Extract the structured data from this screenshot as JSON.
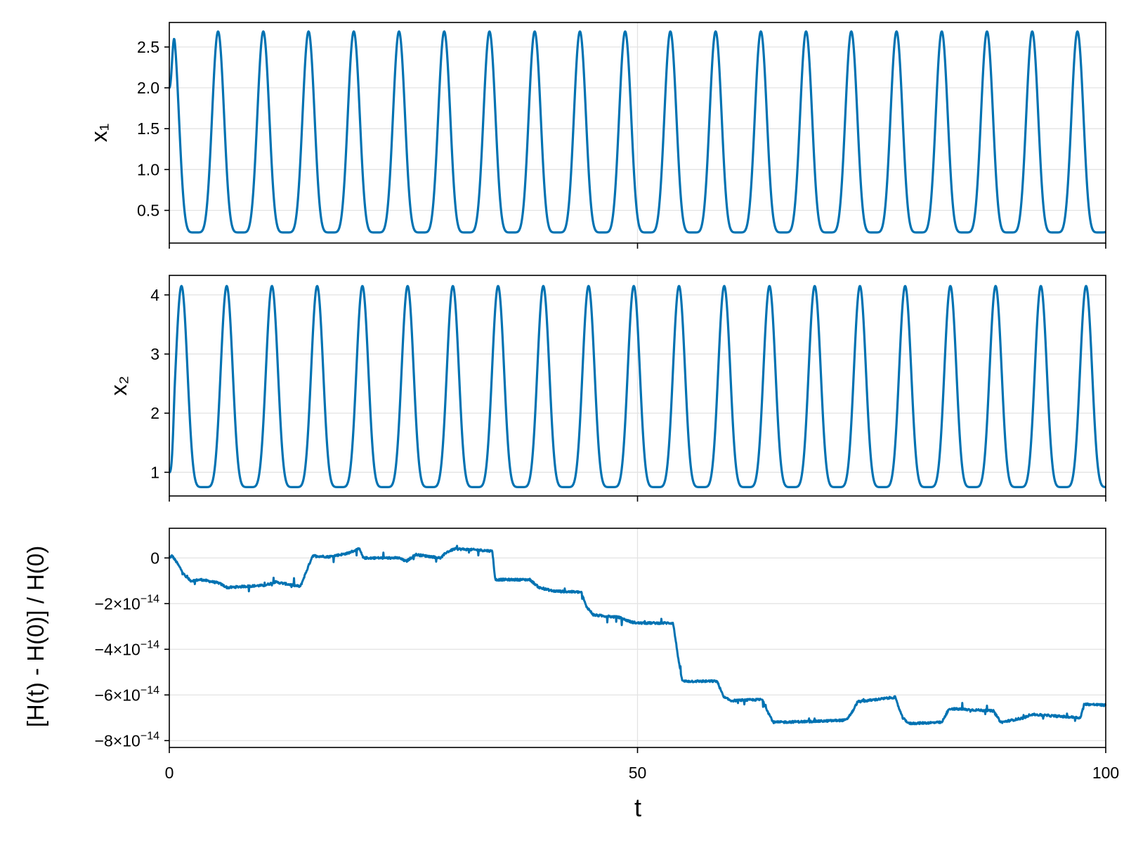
{
  "colors": {
    "series": "#0072b2",
    "grid": "#e3e3e3",
    "frame": "#000000",
    "background": "#ffffff"
  },
  "x_axis": {
    "label": "t",
    "ticks": [
      "0",
      "50",
      "100"
    ]
  },
  "chart_data": [
    {
      "type": "line",
      "title": "",
      "xlabel": "",
      "ylabel": "x₁",
      "xlim": [
        0,
        100
      ],
      "ylim": [
        0.1,
        2.8
      ],
      "yticks": [
        0.5,
        1.0,
        1.5,
        2.0,
        2.5
      ],
      "ytick_labels": [
        "0.5",
        "1.0",
        "1.5",
        "2.0",
        "2.5"
      ],
      "grid": true,
      "series_shape": {
        "kind": "periodic",
        "period": 4.83,
        "phase_offset": 0.38,
        "min": 0.23,
        "max": 2.69,
        "initial_value": 2.0
      },
      "series": [
        {
          "name": "",
          "x": [
            0,
            0.4,
            0.8,
            1.3,
            2.0,
            2.8,
            3.7,
            4.2,
            4.6,
            4.9,
            5.2,
            5.6,
            6.1
          ],
          "y": [
            2.0,
            2.69,
            1.85,
            0.7,
            0.3,
            0.24,
            0.35,
            0.9,
            2.0,
            2.69,
            2.0,
            0.75,
            0.3
          ]
        }
      ]
    },
    {
      "type": "line",
      "title": "",
      "xlabel": "",
      "ylabel": "x₂",
      "xlim": [
        0,
        100
      ],
      "ylim": [
        0.6,
        4.33
      ],
      "yticks": [
        1,
        2,
        3,
        4
      ],
      "ytick_labels": [
        "1",
        "2",
        "3",
        "4"
      ],
      "grid": true,
      "series_shape": {
        "kind": "periodic",
        "period": 4.83,
        "phase_offset": 1.3,
        "min": 0.75,
        "max": 4.15,
        "initial_value": 1.0
      },
      "series": [
        {
          "name": "",
          "x": [
            0,
            0.5,
            1.0,
            1.3,
            1.8,
            2.5,
            3.2,
            4.0,
            4.7,
            5.4,
            6.1
          ],
          "y": [
            1.0,
            2.2,
            3.8,
            4.15,
            3.5,
            1.9,
            1.05,
            0.78,
            0.9,
            1.6,
            3.2
          ]
        }
      ]
    },
    {
      "type": "line",
      "title": "",
      "xlabel": "t",
      "ylabel": "[H(t) - H(0)] / H(0)",
      "xlim": [
        0,
        100
      ],
      "ylim": [
        -8.3e-14,
        1.3e-14
      ],
      "xticks": [
        0,
        50,
        100
      ],
      "yticks": [
        0,
        -2e-14,
        -4e-14,
        -6e-14,
        -8e-14
      ],
      "ytick_labels": [
        {
          "mantissa": "0",
          "exponent": ""
        },
        {
          "mantissa": "−2×10",
          "exponent": "−14"
        },
        {
          "mantissa": "−4×10",
          "exponent": "−14"
        },
        {
          "mantissa": "−6×10",
          "exponent": "−14"
        },
        {
          "mantissa": "−8×10",
          "exponent": "−14"
        }
      ],
      "grid": true,
      "series": [
        {
          "name": "",
          "step_levels_1e14": [
            [
              0,
              0
            ],
            [
              0.3,
              0.1
            ],
            [
              0.8,
              -0.2
            ],
            [
              1.7,
              -0.8
            ],
            [
              2.3,
              -1.0
            ],
            [
              3.4,
              -0.95
            ],
            [
              5.3,
              -1.1
            ],
            [
              6.2,
              -1.3
            ],
            [
              7.8,
              -1.25
            ],
            [
              10.2,
              -1.2
            ],
            [
              11.3,
              -1.05
            ],
            [
              14.0,
              -1.25
            ],
            [
              15.3,
              0.1
            ],
            [
              17.0,
              0.05
            ],
            [
              19.0,
              0.2
            ],
            [
              20.3,
              0.4
            ],
            [
              20.7,
              0.0
            ],
            [
              24.5,
              0.0
            ],
            [
              25.3,
              -0.15
            ],
            [
              26.3,
              0.15
            ],
            [
              29.0,
              0.0
            ],
            [
              29.6,
              0.25
            ],
            [
              30.5,
              0.4
            ],
            [
              33.0,
              0.35
            ],
            [
              34.5,
              0.3
            ],
            [
              34.8,
              -0.95
            ],
            [
              38.5,
              -0.95
            ],
            [
              39.5,
              -1.3
            ],
            [
              41.0,
              -1.45
            ],
            [
              44.0,
              -1.5
            ],
            [
              44.5,
              -2.1
            ],
            [
              45.3,
              -2.5
            ],
            [
              48.0,
              -2.6
            ],
            [
              49.3,
              -2.8
            ],
            [
              50.0,
              -2.85
            ],
            [
              53.8,
              -2.85
            ],
            [
              54.5,
              -4.8
            ],
            [
              54.8,
              -5.4
            ],
            [
              58.5,
              -5.4
            ],
            [
              59.2,
              -6.1
            ],
            [
              60.0,
              -6.25
            ],
            [
              63.3,
              -6.2
            ],
            [
              64.0,
              -6.8
            ],
            [
              64.5,
              -7.2
            ],
            [
              69.5,
              -7.15
            ],
            [
              72.3,
              -7.1
            ],
            [
              73.0,
              -6.7
            ],
            [
              73.5,
              -6.3
            ],
            [
              77.5,
              -6.1
            ],
            [
              78.3,
              -7.0
            ],
            [
              79.0,
              -7.25
            ],
            [
              82.5,
              -7.2
            ],
            [
              83.3,
              -6.6
            ],
            [
              88.0,
              -6.7
            ],
            [
              88.8,
              -7.2
            ],
            [
              91.3,
              -7.0
            ],
            [
              92.0,
              -6.85
            ],
            [
              97.3,
              -7.0
            ],
            [
              97.7,
              -6.4
            ],
            [
              100,
              -6.45
            ]
          ]
        }
      ]
    }
  ]
}
